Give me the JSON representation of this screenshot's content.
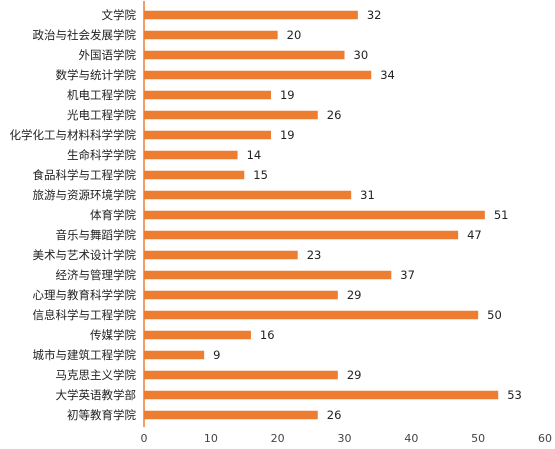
{
  "chart_data": {
    "type": "bar",
    "orientation": "horizontal",
    "categories": [
      "文学院",
      "政治与社会发展学院",
      "外国语学院",
      "数学与统计学院",
      "机电工程学院",
      "光电工程学院",
      "化学化工与材料科学学院",
      "生命科学学院",
      "食品科学与工程学院",
      "旅游与资源环境学院",
      "体育学院",
      "音乐与舞蹈学院",
      "美术与艺术设计学院",
      "经济与管理学院",
      "心理与教育科学学院",
      "信息科学与工程学院",
      "传媒学院",
      "城市与建筑工程学院",
      "马克思主义学院",
      "大学英语教学部",
      "初等教育学院"
    ],
    "values": [
      32,
      20,
      30,
      34,
      19,
      26,
      19,
      14,
      15,
      31,
      51,
      47,
      23,
      37,
      29,
      50,
      16,
      9,
      29,
      53,
      26
    ],
    "title": "",
    "xlabel": "",
    "ylabel": "",
    "xlim": [
      0,
      60
    ],
    "xticks": [
      0,
      10,
      20,
      30,
      40,
      50,
      60
    ],
    "grid": false,
    "legend": "none",
    "colors": {
      "bar": "#ED7D31",
      "axis": "#ED7D31",
      "text": "#222222"
    }
  }
}
